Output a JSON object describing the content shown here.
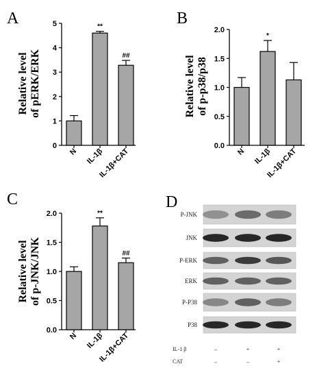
{
  "chart_data": [
    {
      "panel": "A",
      "type": "bar",
      "categories": [
        "N",
        "IL-1β",
        "IL-1β+CAT"
      ],
      "values": [
        1.0,
        4.6,
        3.28
      ],
      "errors": [
        0.22,
        0.07,
        0.2
      ],
      "annotations": [
        "",
        "**",
        "##"
      ],
      "ylabel_line1": "Relative level",
      "ylabel_line2": "of pERK/ERK",
      "ylim": [
        0,
        5
      ],
      "yticks": [
        "0",
        "1",
        "2",
        "3",
        "4",
        "5"
      ],
      "tick_values": [
        0,
        1,
        2,
        3,
        4,
        5
      ],
      "bar_color": "#a6a6a6"
    },
    {
      "panel": "B",
      "type": "bar",
      "categories": [
        "N",
        "IL-1β",
        "IL-1β+CAT"
      ],
      "values": [
        1.0,
        1.62,
        1.13
      ],
      "errors": [
        0.17,
        0.19,
        0.3
      ],
      "annotations": [
        "",
        "*",
        ""
      ],
      "ylabel_line1": "Relative level",
      "ylabel_line2": "of p-p38/p38",
      "ylim": [
        0,
        2
      ],
      "yticks": [
        "0.0",
        "0.5",
        "1.0",
        "1.5",
        "2.0"
      ],
      "tick_values": [
        0,
        0.5,
        1.0,
        1.5,
        2.0
      ],
      "bar_color": "#a6a6a6"
    },
    {
      "panel": "C",
      "type": "bar",
      "categories": [
        "N",
        "IL-1β",
        "IL-1β+CAT"
      ],
      "values": [
        1.0,
        1.78,
        1.15
      ],
      "errors": [
        0.08,
        0.14,
        0.08
      ],
      "annotations": [
        "",
        "**",
        "##"
      ],
      "ylabel_line1": "Relative level",
      "ylabel_line2": "of p-JNK/JNK",
      "ylim": [
        0,
        2
      ],
      "yticks": [
        "0.0",
        "0.5",
        "1.0",
        "1.5",
        "2.0"
      ],
      "tick_values": [
        0,
        0.5,
        1.0,
        1.5,
        2.0
      ],
      "bar_color": "#a6a6a6"
    }
  ],
  "western_blot": {
    "panel": "D",
    "bands": [
      "P-JNK",
      "JNK",
      "P-ERK",
      "ERK",
      "P-P38",
      "P38"
    ],
    "conditions": [
      {
        "label": "IL-1 β",
        "values": [
          "–",
          "+",
          "+"
        ]
      },
      {
        "label": "CAT",
        "values": [
          "–",
          "–",
          "+"
        ]
      }
    ]
  }
}
